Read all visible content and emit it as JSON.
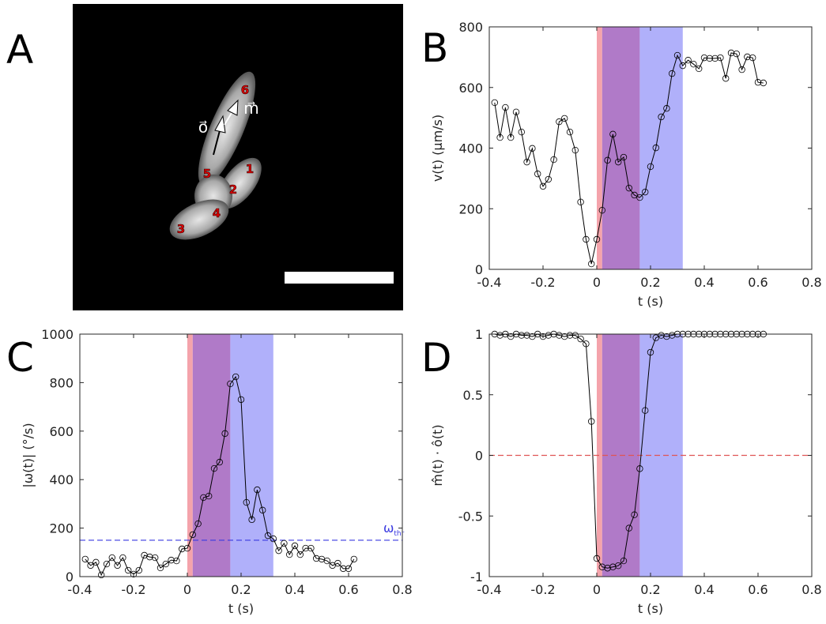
{
  "panel_labels": [
    "A",
    "B",
    "C",
    "D"
  ],
  "image": {
    "cell_labels": [
      "1",
      "2",
      "3",
      "4",
      "5",
      "6"
    ],
    "vector_labels": [
      "o⃗",
      "m⃗"
    ]
  },
  "chart_data": [
    {
      "type": "line",
      "xlabel": "t (s)",
      "ylabel": "v(t) (µm/s)",
      "x": [
        -0.38,
        -0.36,
        -0.34,
        -0.32,
        -0.3,
        -0.28,
        -0.26,
        -0.24,
        -0.22,
        -0.2,
        -0.18,
        -0.16,
        -0.14,
        -0.12,
        -0.1,
        -0.08,
        -0.06,
        -0.04,
        -0.02,
        0.0,
        0.02,
        0.04,
        0.06,
        0.08,
        0.1,
        0.12,
        0.14,
        0.16,
        0.18,
        0.2,
        0.22,
        0.24,
        0.26,
        0.28,
        0.3,
        0.32,
        0.34,
        0.36,
        0.38,
        0.4,
        0.42,
        0.44,
        0.46,
        0.48,
        0.5,
        0.52,
        0.54,
        0.56,
        0.58,
        0.6,
        0.62
      ],
      "series": [
        {
          "color": "#000000",
          "values": [
            550,
            435,
            534,
            435,
            519,
            453,
            354,
            399,
            315,
            274,
            297,
            362,
            487,
            498,
            453,
            393,
            222,
            99,
            18,
            99,
            195,
            360,
            446,
            354,
            370,
            268,
            245,
            237,
            255,
            339,
            401,
            503,
            531,
            646,
            706,
            672,
            690,
            677,
            662,
            698,
            696,
            696,
            698,
            630,
            714,
            711,
            659,
            701,
            698,
            617,
            615
          ]
        }
      ],
      "spans": [
        {
          "range": [
            0,
            0.02
          ],
          "color": "#f4a3ab"
        },
        {
          "range": [
            0.02,
            0.16
          ],
          "color": "#b07ac8"
        },
        {
          "range": [
            0.16,
            0.32
          ],
          "color": "#b0b0fa"
        }
      ],
      "xlim": [
        -0.4,
        0.8
      ],
      "xticks": [
        -0.4,
        -0.2,
        0,
        0.2,
        0.4,
        0.6,
        0.8
      ],
      "ylim": [
        0,
        800
      ],
      "yticks": [
        0,
        200,
        400,
        600,
        800
      ]
    },
    {
      "type": "line",
      "xlabel": "t (s)",
      "ylabel": "|ω(t)| (°/s)",
      "x": [
        -0.38,
        -0.36,
        -0.34,
        -0.32,
        -0.3,
        -0.28,
        -0.26,
        -0.24,
        -0.22,
        -0.2,
        -0.18,
        -0.16,
        -0.14,
        -0.12,
        -0.1,
        -0.08,
        -0.06,
        -0.04,
        -0.02,
        0.0,
        0.02,
        0.04,
        0.06,
        0.08,
        0.1,
        0.12,
        0.14,
        0.16,
        0.18,
        0.2,
        0.22,
        0.24,
        0.26,
        0.28,
        0.3,
        0.32,
        0.34,
        0.36,
        0.38,
        0.4,
        0.42,
        0.44,
        0.46,
        0.48,
        0.5,
        0.52,
        0.54,
        0.56,
        0.58,
        0.6,
        0.62
      ],
      "series": [
        {
          "color": "#000000",
          "values": [
            72,
            46,
            59,
            7,
            52,
            78,
            46,
            78,
            26,
            10,
            26,
            88,
            81,
            78,
            36,
            52,
            68,
            65,
            114,
            117,
            173,
            218,
            326,
            332,
            446,
            472,
            590,
            795,
            824,
            730,
            306,
            235,
            358,
            274,
            169,
            156,
            107,
            137,
            91,
            127,
            91,
            117,
            117,
            75,
            72,
            65,
            46,
            55,
            33,
            33,
            72
          ]
        }
      ],
      "spans": [
        {
          "range": [
            0,
            0.02
          ],
          "color": "#f4a3ab"
        },
        {
          "range": [
            0.02,
            0.16
          ],
          "color": "#b07ac8"
        },
        {
          "range": [
            0.16,
            0.32
          ],
          "color": "#b0b0fa"
        }
      ],
      "ref_line": {
        "value": 150,
        "color": "#3a3ae0",
        "label": "ω",
        "label_sub": "thr"
      },
      "xlim": [
        -0.4,
        0.8
      ],
      "xticks": [
        -0.4,
        -0.2,
        0,
        0.2,
        0.4,
        0.6,
        0.8
      ],
      "ylim": [
        0,
        1000
      ],
      "yticks": [
        0,
        200,
        400,
        600,
        800,
        1000
      ]
    },
    {
      "type": "line",
      "xlabel": "t (s)",
      "ylabel": "m̂(t) · ô(t)",
      "x": [
        -0.38,
        -0.36,
        -0.34,
        -0.32,
        -0.3,
        -0.28,
        -0.26,
        -0.24,
        -0.22,
        -0.2,
        -0.18,
        -0.16,
        -0.14,
        -0.12,
        -0.1,
        -0.08,
        -0.06,
        -0.04,
        -0.02,
        0.0,
        0.02,
        0.04,
        0.06,
        0.08,
        0.1,
        0.12,
        0.14,
        0.16,
        0.18,
        0.2,
        0.22,
        0.24,
        0.26,
        0.28,
        0.3,
        0.32,
        0.34,
        0.36,
        0.38,
        0.4,
        0.42,
        0.44,
        0.46,
        0.48,
        0.5,
        0.52,
        0.54,
        0.56,
        0.58,
        0.6,
        0.62
      ],
      "series": [
        {
          "color": "#000000",
          "values": [
            1,
            0.99,
            1,
            0.98,
            1,
            0.99,
            0.99,
            0.98,
            1,
            0.98,
            0.99,
            1,
            0.99,
            0.98,
            0.99,
            0.99,
            0.96,
            0.92,
            0.28,
            -0.85,
            -0.92,
            -0.93,
            -0.92,
            -0.91,
            -0.87,
            -0.6,
            -0.49,
            -0.11,
            0.37,
            0.85,
            0.97,
            0.99,
            0.98,
            0.99,
            1,
            1,
            1,
            1,
            1,
            1,
            1,
            1,
            1,
            1,
            1,
            1,
            1,
            1,
            1,
            1,
            1
          ]
        }
      ],
      "spans": [
        {
          "range": [
            0,
            0.02
          ],
          "color": "#f4a3ab"
        },
        {
          "range": [
            0.02,
            0.16
          ],
          "color": "#b07ac8"
        },
        {
          "range": [
            0.16,
            0.32
          ],
          "color": "#b0b0fa"
        }
      ],
      "ref_line": {
        "value": 0,
        "color": "#e05555"
      },
      "xlim": [
        -0.4,
        0.8
      ],
      "xticks": [
        -0.4,
        -0.2,
        0,
        0.2,
        0.4,
        0.6,
        0.8
      ],
      "ylim": [
        -1,
        1
      ],
      "yticks": [
        -1,
        -0.5,
        0,
        0.5,
        1
      ]
    }
  ]
}
